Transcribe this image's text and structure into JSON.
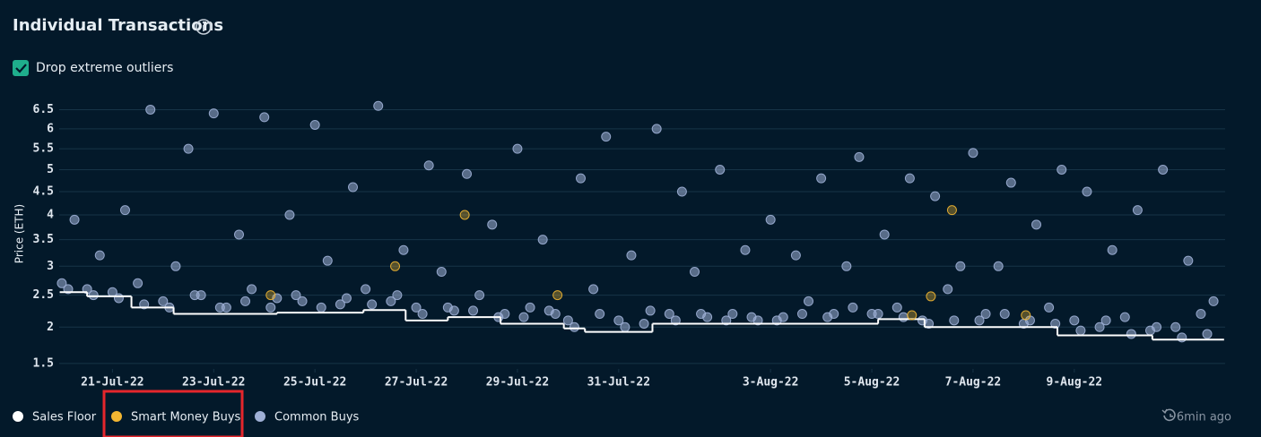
{
  "header": {
    "title": "Individual Transactions"
  },
  "controls": {
    "checkbox_label": "Drop extreme outliers",
    "checked": true
  },
  "footer": {
    "updated": "6min ago"
  },
  "chart_data": {
    "type": "scatter",
    "y_label": "Price (ETH)",
    "yscale": "sqrt",
    "ylim": [
      1.43,
      6.8
    ],
    "yticks": [
      1.5,
      2,
      2.5,
      3,
      3.5,
      4,
      4.5,
      5,
      5.5,
      6,
      6.5
    ],
    "xlim": [
      "2022-07-19T22:45",
      "2022-08-11T23:30"
    ],
    "xticks": [
      {
        "value": "2022-07-21T00:00",
        "label": "21-Jul-22"
      },
      {
        "value": "2022-07-23T00:00",
        "label": "23-Jul-22"
      },
      {
        "value": "2022-07-25T00:00",
        "label": "25-Jul-22"
      },
      {
        "value": "2022-07-27T00:00",
        "label": "27-Jul-22"
      },
      {
        "value": "2022-07-29T00:00",
        "label": "29-Jul-22"
      },
      {
        "value": "2022-07-31T00:00",
        "label": "31-Jul-22"
      },
      {
        "value": "2022-08-03T00:00",
        "label": "3-Aug-22"
      },
      {
        "value": "2022-08-05T00:00",
        "label": "5-Aug-22"
      },
      {
        "value": "2022-08-07T00:00",
        "label": "7-Aug-22"
      },
      {
        "value": "2022-08-09T00:00",
        "label": "9-Aug-22"
      }
    ],
    "grid": true,
    "series": [
      {
        "name": "Sales Floor",
        "color": "#ffffff",
        "style": "step",
        "x": [
          "2022-07-19T23:00",
          "2022-07-20T12:00",
          "2022-07-21T09:00",
          "2022-07-22T05:00",
          "2022-07-24T06:00",
          "2022-07-25T23:00",
          "2022-07-26T19:00",
          "2022-07-27T15:00",
          "2022-07-28T16:00",
          "2022-07-29T22:00",
          "2022-07-30T08:00",
          "2022-07-31T16:00",
          "2022-08-05T03:00",
          "2022-08-06T01:00",
          "2022-08-08T16:00",
          "2022-08-10T13:00",
          "2022-08-11T23:00"
        ],
        "values": [
          2.55,
          2.48,
          2.3,
          2.2,
          2.22,
          2.26,
          2.1,
          2.15,
          2.05,
          1.98,
          1.93,
          2.05,
          2.12,
          2.0,
          1.88,
          1.82,
          1.82
        ]
      },
      {
        "name": "Smart Money Buys",
        "color": "#f2b632",
        "style": "points",
        "x": [
          "2022-07-24T03:00",
          "2022-07-26T14:00",
          "2022-07-27T23:00",
          "2022-07-29T19:00",
          "2022-08-05T19:00",
          "2022-08-06T04:00",
          "2022-08-06T14:00",
          "2022-08-08T01:00"
        ],
        "values": [
          2.5,
          3.0,
          4.0,
          2.5,
          2.18,
          2.48,
          4.1,
          2.18
        ]
      },
      {
        "name": "Common Buys",
        "color": "#9fb0d6",
        "style": "points",
        "x": [
          "2022-07-20T00:00",
          "2022-07-20T03:00",
          "2022-07-20T06:00",
          "2022-07-20T12:00",
          "2022-07-20T15:00",
          "2022-07-20T18:00",
          "2022-07-21T00:00",
          "2022-07-21T03:00",
          "2022-07-21T06:00",
          "2022-07-21T12:00",
          "2022-07-21T15:00",
          "2022-07-21T18:00",
          "2022-07-22T00:00",
          "2022-07-22T03:00",
          "2022-07-22T06:00",
          "2022-07-22T12:00",
          "2022-07-22T15:00",
          "2022-07-22T18:00",
          "2022-07-23T00:00",
          "2022-07-23T03:00",
          "2022-07-23T06:00",
          "2022-07-23T12:00",
          "2022-07-23T15:00",
          "2022-07-23T18:00",
          "2022-07-24T00:00",
          "2022-07-24T03:00",
          "2022-07-24T06:00",
          "2022-07-24T12:00",
          "2022-07-24T15:00",
          "2022-07-24T18:00",
          "2022-07-25T00:00",
          "2022-07-25T03:00",
          "2022-07-25T06:00",
          "2022-07-25T12:00",
          "2022-07-25T15:00",
          "2022-07-25T18:00",
          "2022-07-26T00:00",
          "2022-07-26T03:00",
          "2022-07-26T06:00",
          "2022-07-26T12:00",
          "2022-07-26T15:00",
          "2022-07-26T18:00",
          "2022-07-27T00:00",
          "2022-07-27T03:00",
          "2022-07-27T06:00",
          "2022-07-27T12:00",
          "2022-07-27T15:00",
          "2022-07-27T18:00",
          "2022-07-28T00:00",
          "2022-07-28T03:00",
          "2022-07-28T06:00",
          "2022-07-28T12:00",
          "2022-07-28T15:00",
          "2022-07-28T18:00",
          "2022-07-29T00:00",
          "2022-07-29T03:00",
          "2022-07-29T06:00",
          "2022-07-29T12:00",
          "2022-07-29T15:00",
          "2022-07-29T18:00",
          "2022-07-30T00:00",
          "2022-07-30T03:00",
          "2022-07-30T06:00",
          "2022-07-30T12:00",
          "2022-07-30T15:00",
          "2022-07-30T18:00",
          "2022-07-31T00:00",
          "2022-07-31T03:00",
          "2022-07-31T06:00",
          "2022-07-31T12:00",
          "2022-07-31T15:00",
          "2022-07-31T18:00",
          "2022-08-01T00:00",
          "2022-08-01T03:00",
          "2022-08-01T06:00",
          "2022-08-01T12:00",
          "2022-08-01T15:00",
          "2022-08-01T18:00",
          "2022-08-02T00:00",
          "2022-08-02T03:00",
          "2022-08-02T06:00",
          "2022-08-02T12:00",
          "2022-08-02T15:00",
          "2022-08-02T18:00",
          "2022-08-03T00:00",
          "2022-08-03T03:00",
          "2022-08-03T06:00",
          "2022-08-03T12:00",
          "2022-08-03T15:00",
          "2022-08-03T18:00",
          "2022-08-04T00:00",
          "2022-08-04T03:00",
          "2022-08-04T06:00",
          "2022-08-04T12:00",
          "2022-08-04T15:00",
          "2022-08-04T18:00",
          "2022-08-05T00:00",
          "2022-08-05T03:00",
          "2022-08-05T06:00",
          "2022-08-05T12:00",
          "2022-08-05T15:00",
          "2022-08-05T18:00",
          "2022-08-06T00:00",
          "2022-08-06T03:00",
          "2022-08-06T06:00",
          "2022-08-06T12:00",
          "2022-08-06T15:00",
          "2022-08-06T18:00",
          "2022-08-07T00:00",
          "2022-08-07T03:00",
          "2022-08-07T06:00",
          "2022-08-07T12:00",
          "2022-08-07T15:00",
          "2022-08-07T18:00",
          "2022-08-08T00:00",
          "2022-08-08T03:00",
          "2022-08-08T06:00",
          "2022-08-08T12:00",
          "2022-08-08T15:00",
          "2022-08-08T18:00",
          "2022-08-09T00:00",
          "2022-08-09T03:00",
          "2022-08-09T06:00",
          "2022-08-09T12:00",
          "2022-08-09T15:00",
          "2022-08-09T18:00",
          "2022-08-10T00:00",
          "2022-08-10T03:00",
          "2022-08-10T06:00",
          "2022-08-10T12:00",
          "2022-08-10T15:00",
          "2022-08-10T18:00",
          "2022-08-11T00:00",
          "2022-08-11T03:00",
          "2022-08-11T06:00",
          "2022-08-11T12:00",
          "2022-08-11T15:00",
          "2022-08-11T18:00"
        ],
        "values": [
          2.7,
          2.6,
          3.9,
          2.6,
          2.5,
          3.2,
          2.55,
          2.45,
          4.1,
          2.7,
          2.35,
          6.5,
          2.4,
          2.3,
          3.0,
          5.5,
          2.5,
          2.5,
          6.4,
          2.3,
          2.3,
          3.6,
          2.4,
          2.6,
          6.3,
          2.3,
          2.45,
          4.0,
          2.5,
          2.4,
          6.1,
          2.3,
          3.1,
          2.35,
          2.45,
          4.6,
          2.6,
          2.35,
          6.6,
          2.4,
          2.5,
          3.3,
          2.3,
          2.2,
          5.1,
          2.9,
          2.3,
          2.25,
          4.9,
          2.25,
          2.5,
          3.8,
          2.15,
          2.2,
          5.5,
          2.15,
          2.3,
          3.5,
          2.25,
          2.2,
          2.1,
          2.0,
          4.8,
          2.6,
          2.2,
          5.8,
          2.1,
          2.0,
          3.2,
          2.05,
          2.25,
          6.0,
          2.2,
          2.1,
          4.5,
          2.9,
          2.2,
          2.15,
          5.0,
          2.1,
          2.2,
          3.3,
          2.15,
          2.1,
          3.9,
          2.1,
          2.15,
          3.2,
          2.2,
          2.4,
          4.8,
          2.15,
          2.2,
          3.0,
          2.3,
          5.3,
          2.2,
          2.2,
          3.6,
          2.3,
          2.15,
          4.8,
          2.1,
          2.05,
          4.4,
          2.6,
          2.1,
          3.0,
          5.4,
          2.1,
          2.2,
          3.0,
          2.2,
          4.7,
          2.05,
          2.1,
          3.8,
          2.3,
          2.05,
          5.0,
          2.1,
          1.95,
          4.5,
          2.0,
          2.1,
          3.3,
          2.15,
          1.9,
          4.1,
          1.95,
          2.0,
          5.0,
          2.0,
          1.85,
          3.1,
          2.2,
          1.9,
          2.4
        ]
      }
    ],
    "legend": "bottom-left"
  }
}
